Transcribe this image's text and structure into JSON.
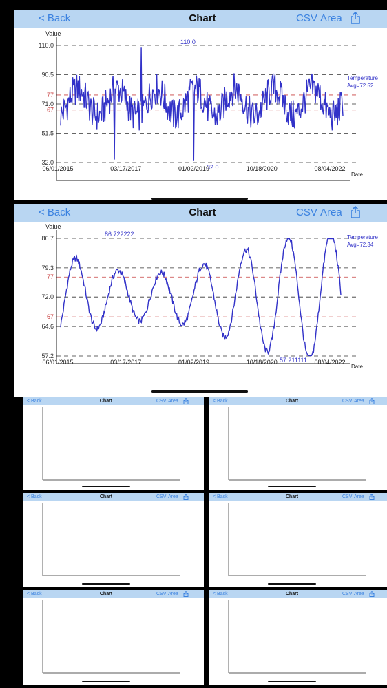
{
  "nav": {
    "back": "< Back",
    "title": "Chart",
    "csv": "CSV",
    "area": "Area"
  },
  "axis": {
    "value": "Value",
    "date": "Date"
  },
  "x_ticks": [
    "06/01/2015",
    "03/17/2017",
    "01/02/2019",
    "10/18/2020",
    "08/04/2022"
  ],
  "colors": {
    "line": "#3232c8",
    "band": "#c84040",
    "accent": "#3b82e0",
    "navbar": "#b9d6f2"
  },
  "chart_data": [
    {
      "type": "line",
      "y_ticks": [
        "110.0",
        "90.5",
        "77",
        "71.0",
        "67",
        "51.5",
        "32.0"
      ],
      "ylim": [
        32,
        110
      ],
      "bands": [
        77,
        67
      ],
      "series": [
        {
          "name": "Temperature",
          "avg": "Avg=72.52"
        }
      ],
      "annotations": {
        "max": "110.0",
        "min": "32.0"
      }
    },
    {
      "type": "line",
      "y_ticks": [
        "86.7",
        "79.3",
        "77",
        "72.0",
        "67",
        "64.6",
        "57.2"
      ],
      "ylim": [
        57.2,
        86.7
      ],
      "bands": [
        77,
        67
      ],
      "series": [
        {
          "name": "Temperature",
          "avg": "Avg=72.34"
        }
      ],
      "annotations": {
        "max": "86.722222",
        "min": "57.211111"
      }
    }
  ]
}
